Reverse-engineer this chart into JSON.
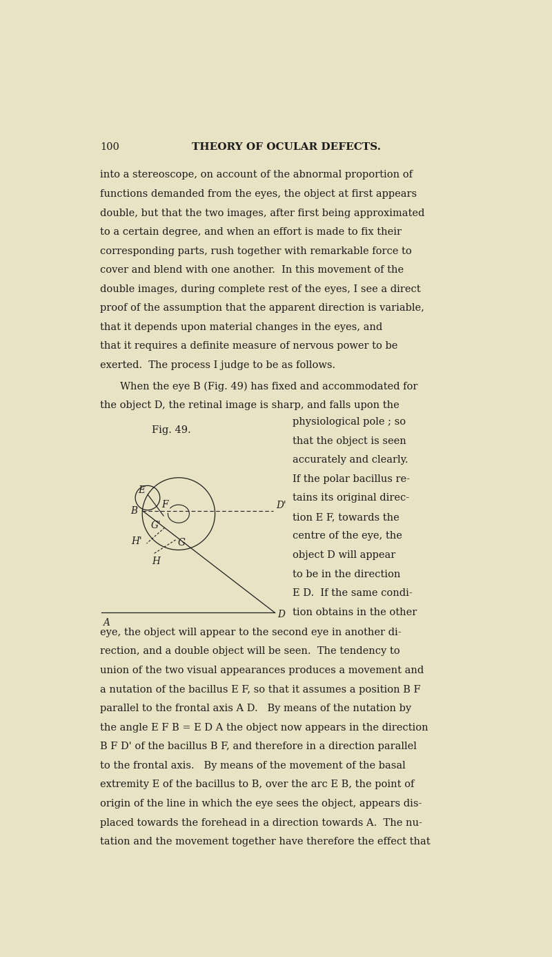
{
  "bg_color": "#e8e3c4",
  "text_color": "#1c1c1c",
  "page_number": "100",
  "header_title": "THEORY OF OCULAR DEFECTS.",
  "body1": [
    "into a stereoscope, on account of the abnormal proportion of",
    "functions demanded from the eyes, the object at first appears",
    "double, but that the two images, after first being approximated",
    "to a certain degree, and when an effort is made to fix their",
    "corresponding parts, rush together with remarkable force to",
    "cover and blend with one another.  In this movement of the",
    "double images, during complete rest of the eyes, I see a direct",
    "proof of the assumption that the apparent direction is variable,",
    "that it depends upon material changes in the eyes, and",
    "that it requires a definite measure of nervous power to be",
    "exerted.  The process I judge to be as follows."
  ],
  "body2_indent": "When the eye B (Fig. 49) has fixed and accommodated for",
  "body2_line2": "the object D, the retinal image is sharp, and falls upon the",
  "right_col": [
    "physiological pole ; so",
    "that the object is seen",
    "accurately and clearly.",
    "If the polar bacillus re-",
    "tains its original direc-",
    "tion E F, towards the",
    "centre of the eye, the",
    "object D will appear",
    "to be in the direction",
    "E D.  If the same condi-",
    "tion obtains in the other"
  ],
  "body3": [
    "eye, the object will appear to the second eye in another di-",
    "rection, and a double object will be seen.  The tendency to",
    "union of the two visual appearances produces a movement and",
    "a nutation of the bacillus E F, so that it assumes a position B F",
    "parallel to the frontal axis A D.   By means of the nutation by",
    "the angle E F B = E D A the object now appears in the direction",
    "B F D' of the bacillus B F, and therefore in a direction parallel",
    "to the frontal axis.   By means of the movement of the basal",
    "extremity E of the bacillus to B, over the arc E B, the point of",
    "origin of the line in which the eye sees the object, appears dis-",
    "placed towards the forehead in a direction towards A.  The nu-",
    "tation and the movement together have therefore the effect that"
  ],
  "fig_label": "Fig. 49."
}
